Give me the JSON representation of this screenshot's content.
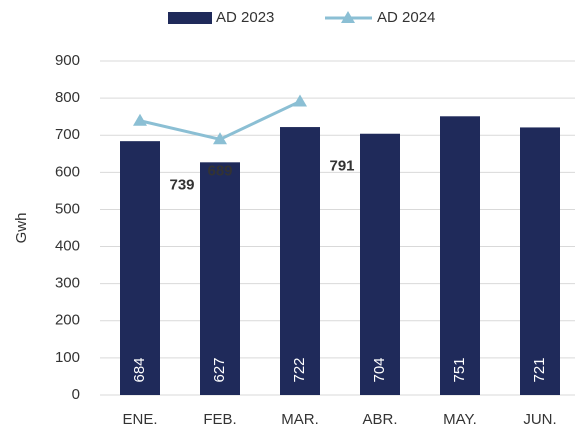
{
  "chart_data": {
    "type": "bar",
    "y_label": "Gwh",
    "categories": [
      "ENE.",
      "FEB.",
      "MAR.",
      "ABR.",
      "MAY.",
      "JUN."
    ],
    "series": [
      {
        "name": "AD 2023",
        "type": "bar",
        "color": "#1f2a5a",
        "values": [
          684,
          627,
          722,
          704,
          751,
          721
        ]
      },
      {
        "name": "AD 2024",
        "type": "line",
        "color": "#8bbfd4",
        "values": [
          739,
          689,
          791,
          null,
          null,
          null
        ]
      }
    ],
    "ylim": [
      0,
      900
    ],
    "yticks": [
      0,
      100,
      200,
      300,
      400,
      500,
      600,
      700,
      800,
      900
    ],
    "grid": true,
    "legend": "top"
  }
}
